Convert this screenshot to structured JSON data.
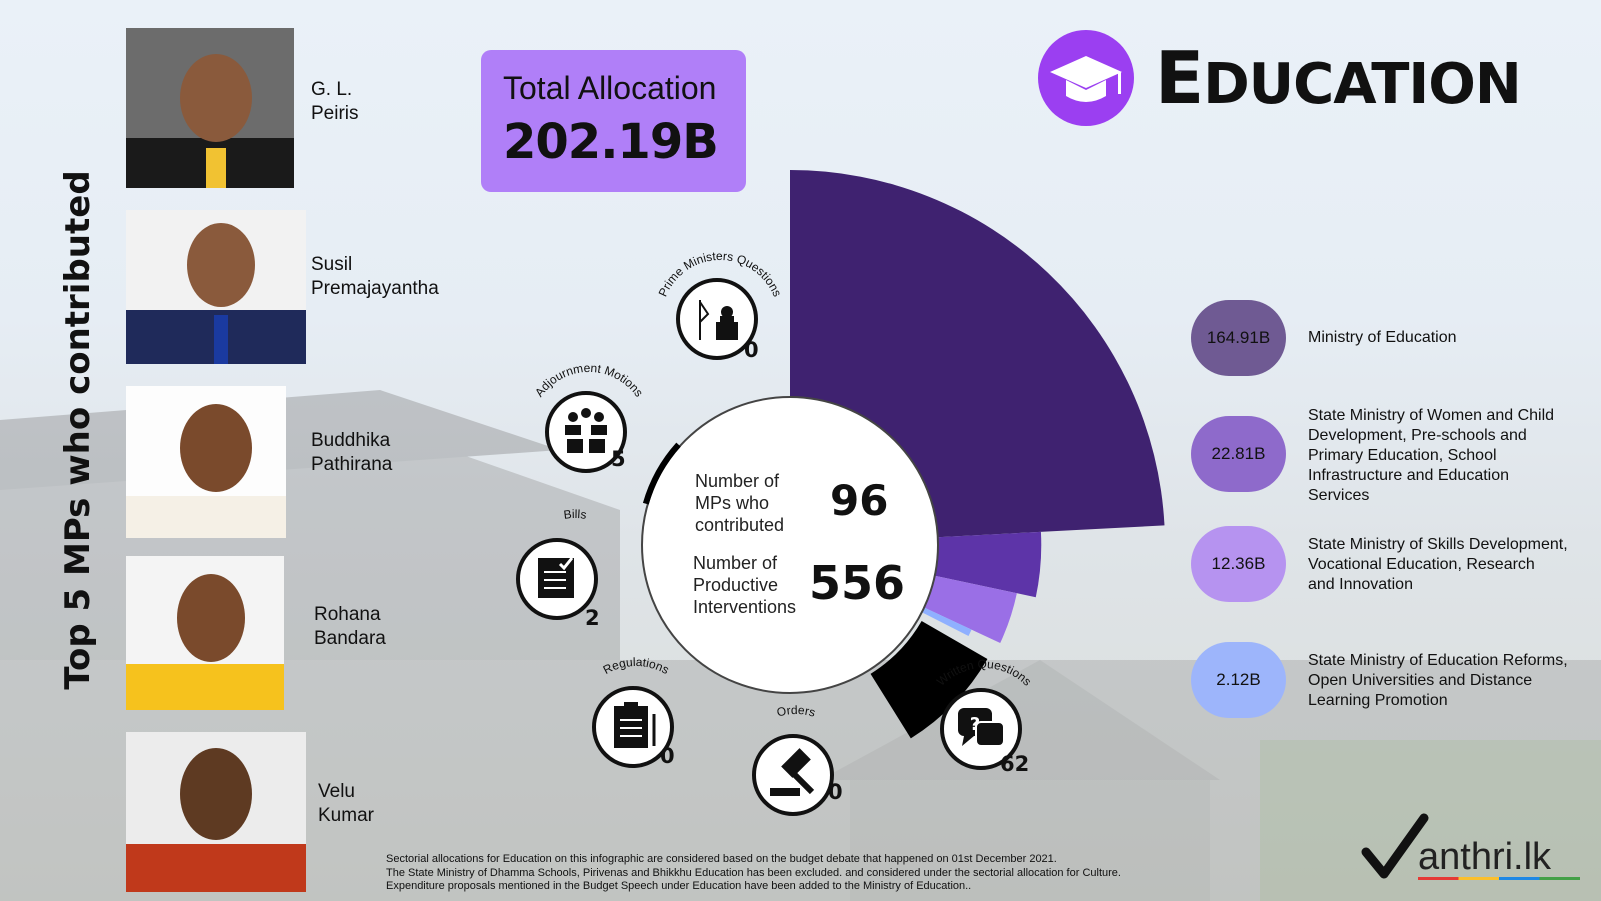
{
  "side_title": "Top 5 MPs who contributed",
  "mps": [
    {
      "name": "G. L.\nPeiris"
    },
    {
      "name": "Susil\nPremajayantha"
    },
    {
      "name": "Buddhika\nPathirana"
    },
    {
      "name": "Rohana\nBandara"
    },
    {
      "name": "Velu\nKumar"
    }
  ],
  "total": {
    "label": "Total Allocation",
    "value": "202.19B"
  },
  "header": {
    "title_big_letter": "E",
    "title_rest": "DUCATION",
    "icon": "graduation-cap-icon",
    "icon_color": "#9b3ff1"
  },
  "center": {
    "mps_label": "Number of\nMPs who\ncontributed",
    "mps_value": "96",
    "interventions_label": "Number of\nProductive\nInterventions",
    "interventions_value": "556"
  },
  "metrics": [
    {
      "label": "Prime Ministers Questions",
      "count": "0",
      "icon": "podium-icon"
    },
    {
      "label": "Adjournment Motions",
      "count": "5",
      "icon": "people-icon"
    },
    {
      "label": "Bills",
      "count": "2",
      "icon": "document-check-icon"
    },
    {
      "label": "Regulations",
      "count": "0",
      "icon": "clipboard-icon"
    },
    {
      "label": "Orders",
      "count": "0",
      "icon": "gavel-icon"
    },
    {
      "label": "Written Questions",
      "count": "62",
      "icon": "chat-question-icon"
    }
  ],
  "chart_data": {
    "type": "pie",
    "variant": "polar-area",
    "categories": [
      "Ministry of Education",
      "State Ministry of Women and Child Development, Pre-schools and Primary Education, School Infrastructure and Education Services",
      "State Ministry of Skills Development, Vocational Education, Research and Innovation",
      "State Ministry of Education Reforms, Open Universities and Distance Learning Promotion"
    ],
    "values": [
      164.91,
      22.81,
      12.36,
      2.12
    ],
    "value_labels": [
      "164.91B",
      "22.81B",
      "12.36B",
      "2.12B"
    ],
    "colors": [
      "#3f2270",
      "#5d34a8",
      "#9a6fe6",
      "#8fb0ff"
    ],
    "interventions_slice_color": "#000000"
  },
  "legend": [
    {
      "value": "164.91B",
      "text": "Ministry of Education",
      "color": "#6f5a93"
    },
    {
      "value": "22.81B",
      "text": "State Ministry of Women and Child\nDevelopment, Pre-schools and\nPrimary Education, School\nInfrastructure and Education\nServices",
      "color": "#8e6acb"
    },
    {
      "value": "12.36B",
      "text": "State Ministry of Skills Development,\nVocational Education, Research\nand Innovation",
      "color": "#b693f0"
    },
    {
      "value": "2.12B",
      "text": "State Ministry of Education Reforms,\nOpen Universities and Distance\nLearning Promotion",
      "color": "#9db5fb"
    }
  ],
  "footnote": "Sectorial allocations for Education on this infographic are considered based on the budget debate that happened on 01st December 2021.\nThe State Ministry of Dhamma Schools, Pirivenas and Bhikkhu Education has been excluded. and considered under the sectorial allocation for Culture.\nExpenditure proposals mentioned in the Budget Speech under Education have been added to the Ministry of Education..",
  "logo": "anthri.lk"
}
